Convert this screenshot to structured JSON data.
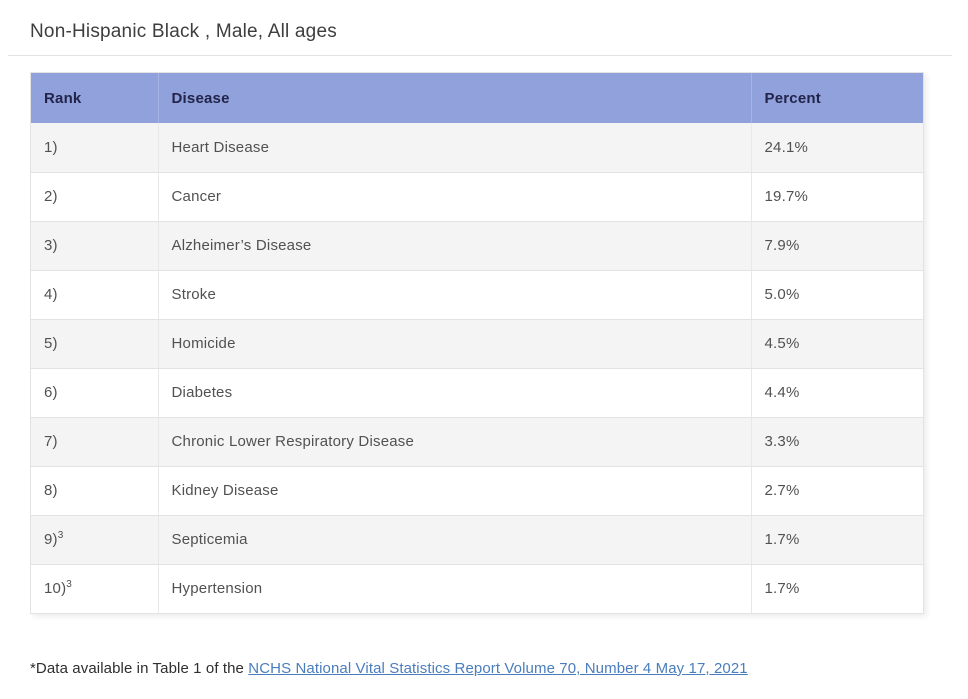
{
  "title": "Non-Hispanic Black , Male, All ages",
  "colors": {
    "header_bg": "#90a1db",
    "header_text": "#22244a",
    "alt_row_bg": "#f4f4f4",
    "body_text": "#515151",
    "border": "#e3e3e3",
    "link": "#4a7dbd"
  },
  "table": {
    "columns": [
      "Rank",
      "Disease",
      "Percent"
    ],
    "rows": [
      {
        "rank": "1)",
        "disease": "Heart Disease",
        "percent": "24.1%"
      },
      {
        "rank": "2)",
        "disease": "Cancer",
        "percent": "19.7%"
      },
      {
        "rank": "3)",
        "disease": "Alzheimer’s Disease",
        "percent": "7.9%"
      },
      {
        "rank": "4)",
        "disease": "Stroke",
        "percent": "5.0%"
      },
      {
        "rank": "5)",
        "disease": "Homicide",
        "percent": "4.5%"
      },
      {
        "rank": "6)",
        "disease": "Diabetes",
        "percent": "4.4%"
      },
      {
        "rank": "7)",
        "disease": "Chronic Lower Respiratory Disease",
        "percent": "3.3%"
      },
      {
        "rank": "8)",
        "disease": "Kidney Disease",
        "percent": "2.7%"
      },
      {
        "rank": "9)",
        "rank_sup": "3",
        "disease": "Septicemia",
        "percent": "1.7%"
      },
      {
        "rank": "10)",
        "rank_sup": "3",
        "disease": "Hypertension",
        "percent": "1.7%"
      }
    ]
  },
  "footer": {
    "prefix": "*Data available in Table 1 of the ",
    "link_text": "NCHS National Vital Statistics Report Volume 70, Number 4 May 17, 2021"
  },
  "chart_data": {
    "type": "table",
    "title": "Non-Hispanic Black , Male, All ages",
    "columns": [
      "Rank",
      "Disease",
      "Percent"
    ],
    "categories": [
      "Heart Disease",
      "Cancer",
      "Alzheimer’s Disease",
      "Stroke",
      "Homicide",
      "Diabetes",
      "Chronic Lower Respiratory Disease",
      "Kidney Disease",
      "Septicemia",
      "Hypertension"
    ],
    "values": [
      24.1,
      19.7,
      7.9,
      5.0,
      4.5,
      4.4,
      3.3,
      2.7,
      1.7,
      1.7
    ],
    "ranks": [
      "1)",
      "2)",
      "3)",
      "4)",
      "5)",
      "6)",
      "7)",
      "8)",
      "9)3",
      "10)3"
    ],
    "footnote": "*Data available in Table 1 of the NCHS National Vital Statistics Report Volume 70, Number 4 May 17, 2021"
  }
}
